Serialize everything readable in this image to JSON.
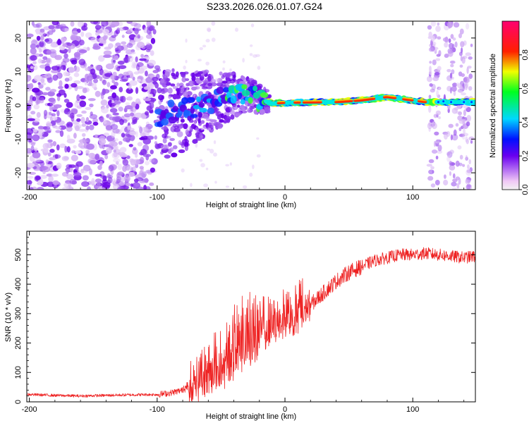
{
  "title": "S233.2026.026.01.07.G24",
  "chart_data": [
    {
      "type": "heatmap",
      "id": "spectrogram",
      "xlabel": "Height of straight line (km)",
      "ylabel": "Frequency (Hz)",
      "xlim": [
        -202,
        149
      ],
      "ylim": [
        -25,
        25
      ],
      "xticks": [
        -200,
        -100,
        0,
        100
      ],
      "yticks": [
        -20,
        -10,
        0,
        10,
        20
      ],
      "colorbar": {
        "label": "Normalized spectral amplitude",
        "range": [
          0,
          1
        ],
        "ticks": [
          0.0,
          0.2,
          0.4,
          0.6,
          0.8
        ]
      },
      "ridge_profile": [
        {
          "x": -100,
          "f": -3.0
        },
        {
          "x": -80,
          "f": -1.5
        },
        {
          "x": -60,
          "f": 1.0
        },
        {
          "x": -45,
          "f": 2.5
        },
        {
          "x": -30,
          "f": 3.0
        },
        {
          "x": -20,
          "f": 2.0
        },
        {
          "x": -10,
          "f": 0.5
        },
        {
          "x": 0,
          "f": 0.8
        },
        {
          "x": 20,
          "f": 0.9
        },
        {
          "x": 40,
          "f": 1.0
        },
        {
          "x": 60,
          "f": 1.5
        },
        {
          "x": 80,
          "f": 2.5
        },
        {
          "x": 90,
          "f": 2.0
        },
        {
          "x": 110,
          "f": 1.0
        },
        {
          "x": 149,
          "f": 1.0
        }
      ]
    },
    {
      "type": "line",
      "id": "snr",
      "xlabel": "Height of straight line (km)",
      "ylabel": "SNR (10 * v/v)",
      "xlim": [
        -202,
        149
      ],
      "ylim": [
        0,
        580
      ],
      "xticks": [
        -200,
        -100,
        0,
        100
      ],
      "yticks": [
        0,
        100,
        200,
        300,
        400,
        500
      ],
      "color": "#ee2222",
      "series": [
        {
          "name": "SNR",
          "x": [
            -200,
            -180,
            -160,
            -140,
            -120,
            -100,
            -90,
            -80,
            -70,
            -60,
            -50,
            -40,
            -30,
            -20,
            -10,
            0,
            10,
            20,
            30,
            40,
            50,
            60,
            70,
            80,
            90,
            100,
            110,
            120,
            130,
            140,
            149
          ],
          "y": [
            25,
            22,
            20,
            22,
            24,
            25,
            30,
            40,
            60,
            90,
            120,
            170,
            210,
            240,
            260,
            290,
            300,
            330,
            370,
            410,
            440,
            460,
            480,
            490,
            500,
            500,
            505,
            500,
            495,
            490,
            495
          ]
        }
      ]
    }
  ]
}
